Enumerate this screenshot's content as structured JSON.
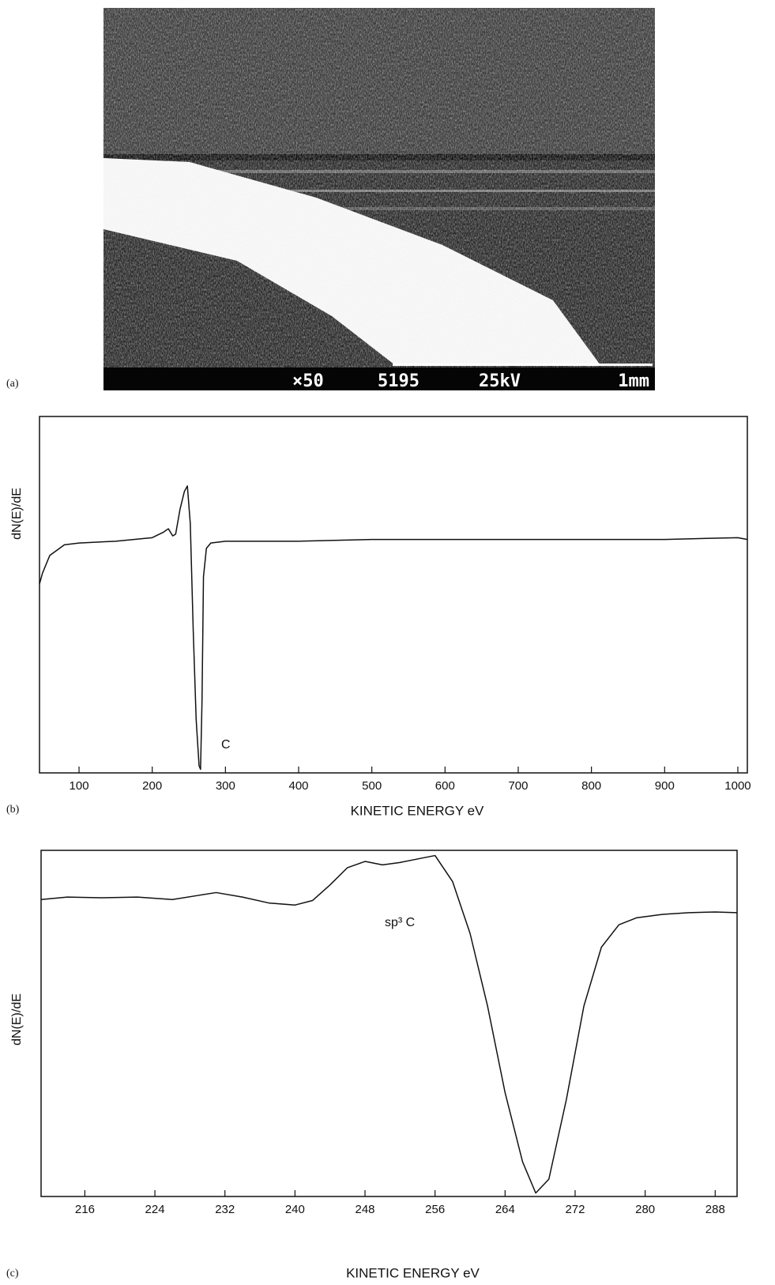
{
  "panel_labels": [
    "(a)",
    "(b)",
    "(c)"
  ],
  "micrograph": {
    "magnification": "×50",
    "number": "5195",
    "voltage": "25kV",
    "scale": "1mm"
  },
  "chart_data": [
    {
      "type": "line",
      "ylabel": "dN(E)/dE",
      "xlabel": "KINETIC ENERGY eV",
      "annotation": "C",
      "color": "#111111",
      "xlim": [
        46,
        1013
      ],
      "ylim": [
        0,
        100
      ],
      "xticks": [
        100,
        200,
        300,
        400,
        500,
        600,
        700,
        800,
        900,
        1000
      ],
      "x": [
        46,
        50,
        60,
        80,
        100,
        150,
        200,
        215,
        222,
        228,
        232,
        238,
        244,
        248,
        252,
        256,
        260,
        264,
        266,
        268,
        270,
        274,
        280,
        300,
        400,
        500,
        600,
        700,
        800,
        900,
        1000,
        1013
      ],
      "values": [
        53,
        56,
        61,
        64,
        64.5,
        65,
        66,
        67.5,
        68.5,
        66.5,
        67,
        74,
        79,
        80.5,
        70,
        40,
        15,
        2,
        1,
        20,
        55,
        63,
        64.5,
        65,
        65,
        65.5,
        65.5,
        65.5,
        65.5,
        65.5,
        66,
        65.5
      ]
    },
    {
      "type": "line",
      "ylabel": "dN(E)/dE",
      "xlabel": "KINETIC ENERGY eV",
      "annotation": "sp³ C",
      "color": "#111111",
      "xlim": [
        211,
        290.5
      ],
      "ylim": [
        0,
        100
      ],
      "xticks": [
        216,
        224,
        232,
        240,
        248,
        256,
        264,
        272,
        280,
        288
      ],
      "x": [
        211,
        214,
        218,
        222,
        226,
        229,
        231,
        234,
        237,
        240,
        242,
        244,
        246,
        248,
        250,
        252,
        254,
        256,
        258,
        260,
        262,
        264,
        266,
        267.5,
        269,
        271,
        273,
        275,
        277,
        279,
        282,
        285,
        288,
        290.5
      ],
      "values": [
        85.8,
        86.5,
        86.3,
        86.5,
        85.8,
        87,
        87.8,
        86.5,
        84.8,
        84.2,
        85.5,
        90,
        95,
        96.8,
        95.8,
        96.5,
        97.5,
        98.5,
        91,
        76,
        55,
        30,
        10,
        1,
        5,
        28,
        55,
        72,
        78.5,
        80.5,
        81.5,
        82,
        82.2,
        82
      ]
    }
  ]
}
